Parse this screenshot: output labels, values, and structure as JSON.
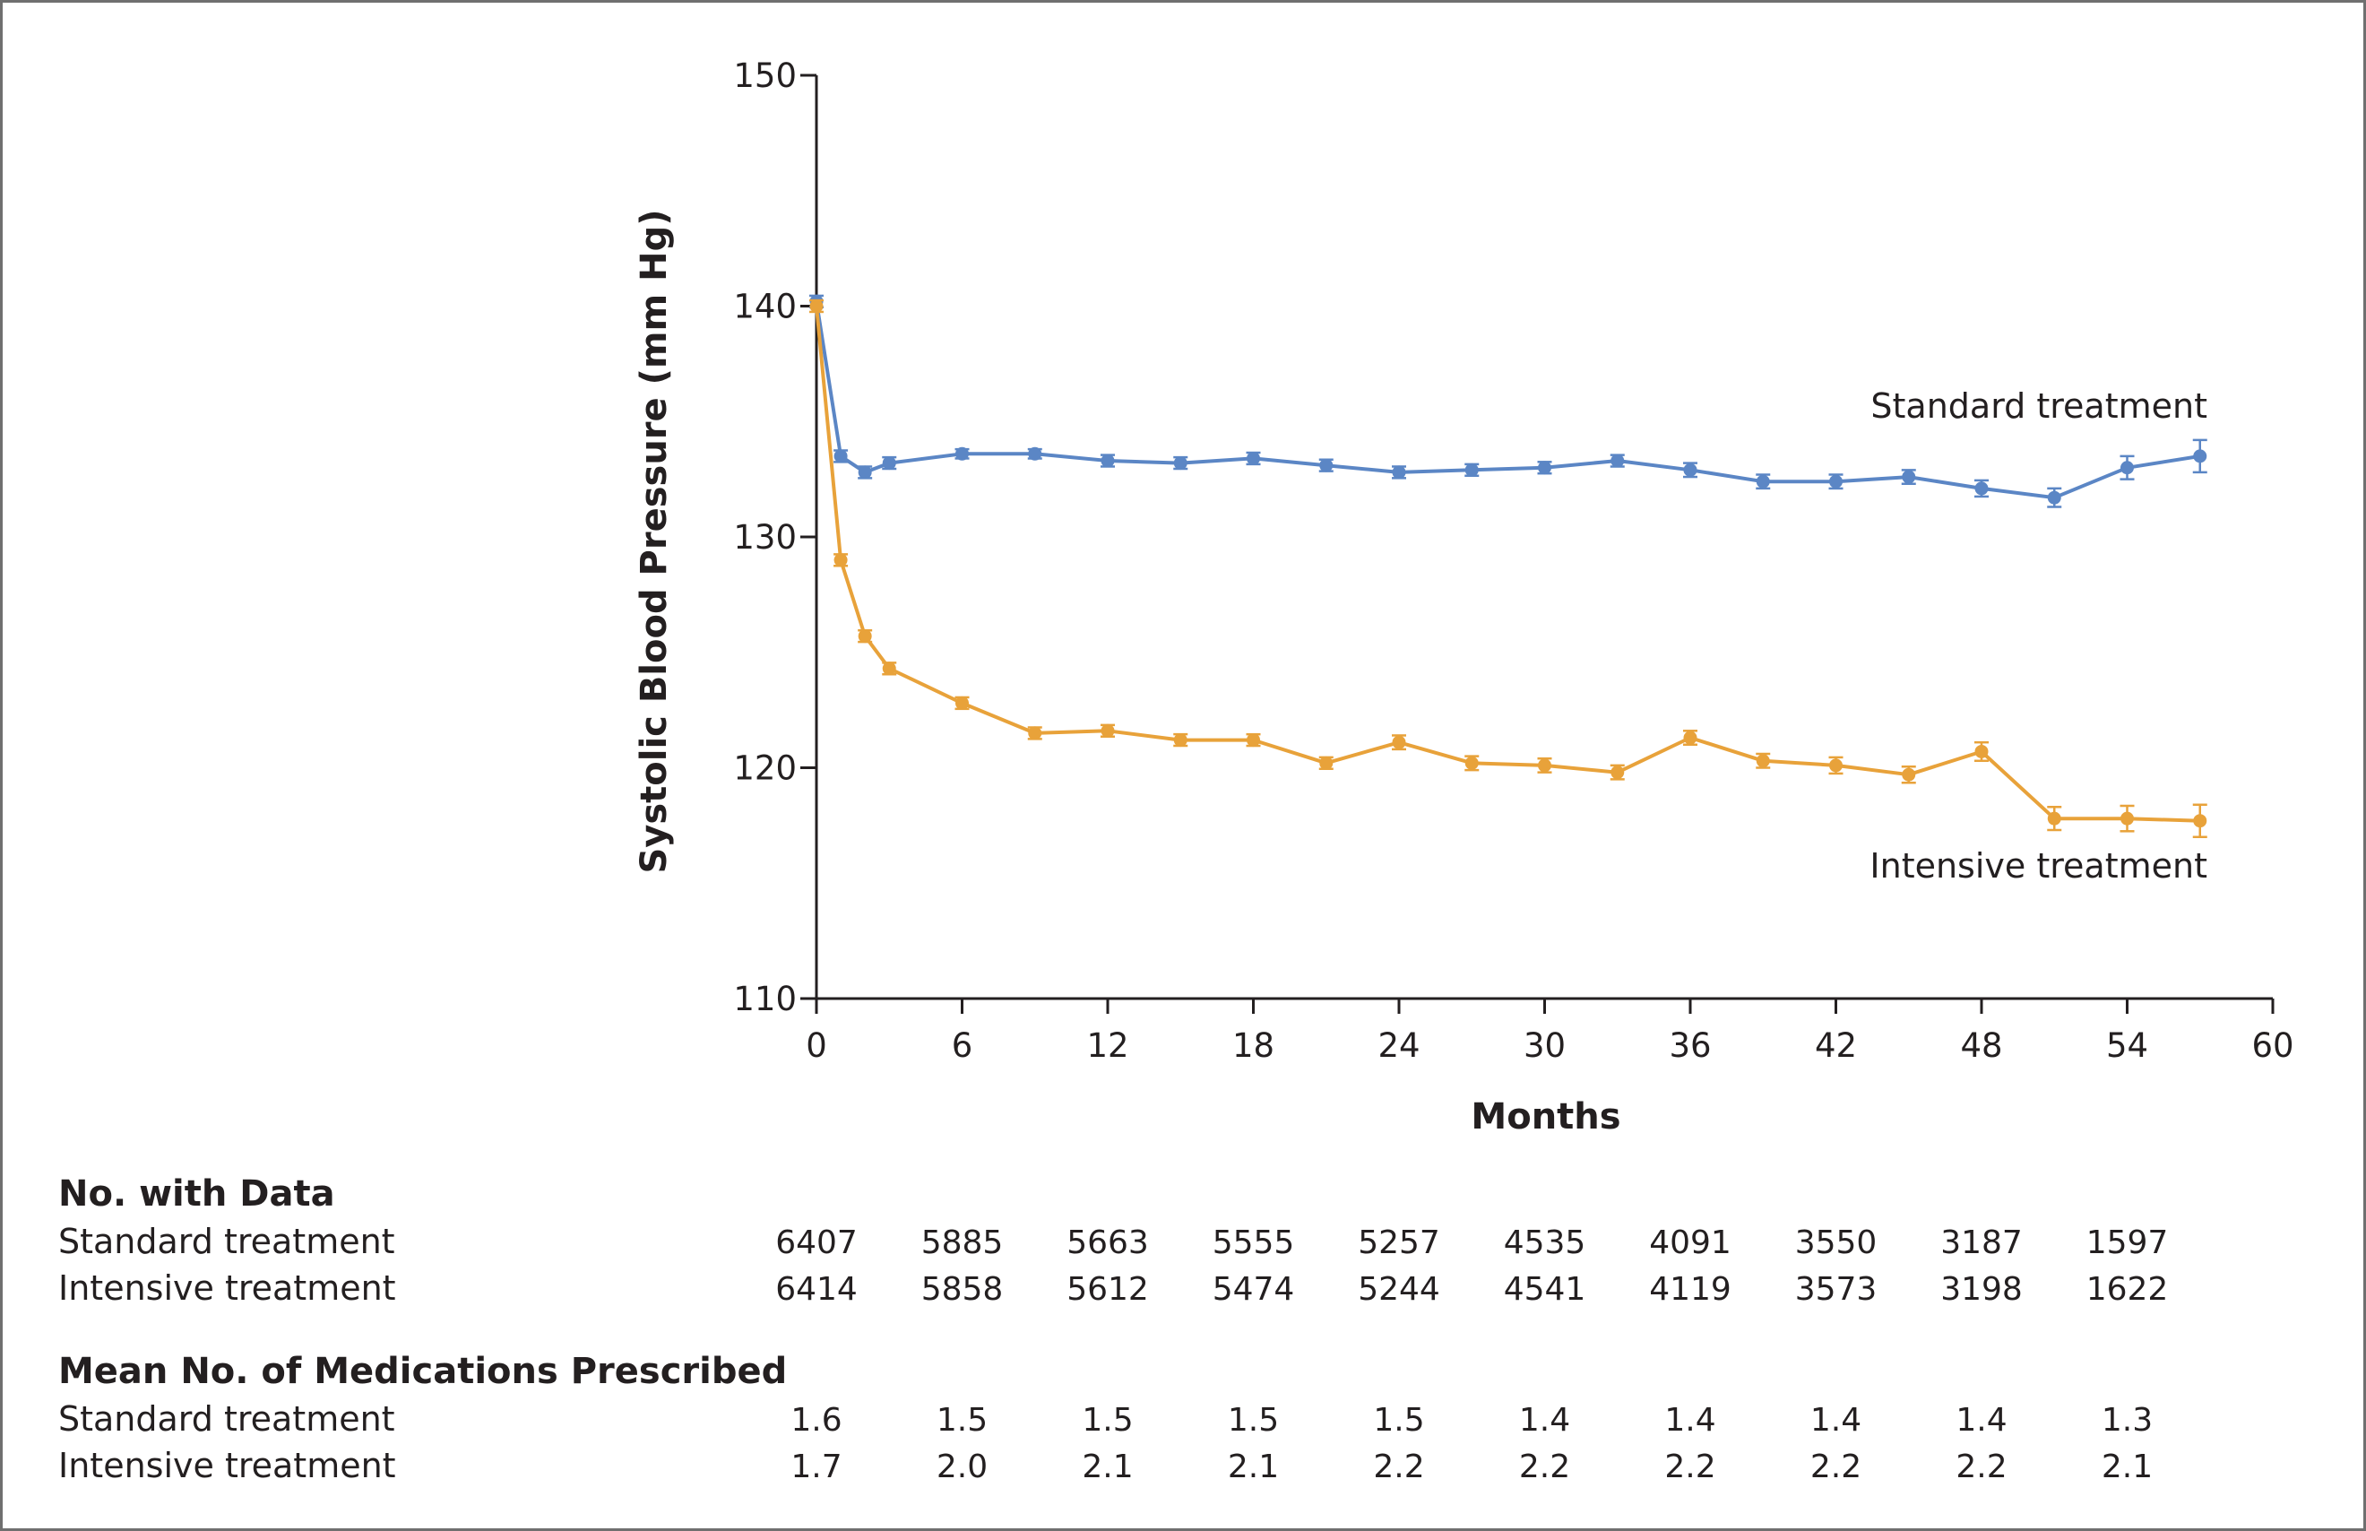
{
  "chart_data": {
    "type": "line",
    "xlabel": "Months",
    "ylabel": "Systolic Blood Pressure (mm Hg)",
    "xlim": [
      0,
      60
    ],
    "ylim": [
      110,
      150
    ],
    "x_ticks": [
      0,
      6,
      12,
      18,
      24,
      30,
      36,
      42,
      48,
      54,
      60
    ],
    "y_ticks": [
      110,
      120,
      130,
      140,
      150
    ],
    "grid": false,
    "legend": "inline labels at right end of lines",
    "series": [
      {
        "name": "Standard treatment",
        "color": "#5b86c5",
        "x": [
          0,
          1,
          2,
          3,
          6,
          9,
          12,
          15,
          18,
          21,
          24,
          27,
          30,
          33,
          36,
          39,
          42,
          45,
          48,
          51,
          54,
          57
        ],
        "y": [
          140.2,
          133.5,
          132.8,
          133.2,
          133.6,
          133.6,
          133.3,
          133.2,
          133.4,
          133.1,
          132.8,
          132.9,
          133.0,
          133.3,
          132.9,
          132.4,
          132.4,
          132.6,
          132.1,
          131.7,
          133.0,
          133.5
        ],
        "err": [
          0.25,
          0.25,
          0.25,
          0.25,
          0.2,
          0.2,
          0.25,
          0.25,
          0.25,
          0.25,
          0.25,
          0.25,
          0.25,
          0.25,
          0.3,
          0.3,
          0.3,
          0.3,
          0.35,
          0.4,
          0.5,
          0.7
        ]
      },
      {
        "name": "Intensive treatment",
        "color": "#e8a23a",
        "x": [
          0,
          1,
          2,
          3,
          6,
          9,
          12,
          15,
          18,
          21,
          24,
          27,
          30,
          33,
          36,
          39,
          42,
          45,
          48,
          51,
          54,
          57
        ],
        "y": [
          140.0,
          129.0,
          125.7,
          124.3,
          122.8,
          121.5,
          121.6,
          121.2,
          121.2,
          120.2,
          121.1,
          120.2,
          120.1,
          119.8,
          121.3,
          120.3,
          120.1,
          119.7,
          120.7,
          117.8,
          117.8,
          117.7
        ],
        "err": [
          0.25,
          0.25,
          0.25,
          0.25,
          0.25,
          0.25,
          0.25,
          0.25,
          0.25,
          0.25,
          0.3,
          0.3,
          0.3,
          0.3,
          0.3,
          0.3,
          0.35,
          0.35,
          0.4,
          0.5,
          0.55,
          0.7
        ]
      }
    ]
  },
  "tables": [
    {
      "title": "No. with Data",
      "x": [
        0,
        6,
        12,
        18,
        24,
        30,
        36,
        42,
        48,
        54
      ],
      "rows": [
        {
          "label": "Standard treatment",
          "values": [
            "6407",
            "5885",
            "5663",
            "5555",
            "5257",
            "4535",
            "4091",
            "3550",
            "3187",
            "1597"
          ]
        },
        {
          "label": "Intensive treatment",
          "values": [
            "6414",
            "5858",
            "5612",
            "5474",
            "5244",
            "4541",
            "4119",
            "3573",
            "3198",
            "1622"
          ]
        }
      ]
    },
    {
      "title": "Mean No. of Medications Prescribed",
      "x": [
        0,
        6,
        12,
        18,
        24,
        30,
        36,
        42,
        48,
        54
      ],
      "rows": [
        {
          "label": "Standard treatment",
          "values": [
            "1.6",
            "1.5",
            "1.5",
            "1.5",
            "1.5",
            "1.4",
            "1.4",
            "1.4",
            "1.4",
            "1.3"
          ]
        },
        {
          "label": "Intensive treatment",
          "values": [
            "1.7",
            "2.0",
            "2.1",
            "2.1",
            "2.2",
            "2.2",
            "2.2",
            "2.2",
            "2.2",
            "2.1"
          ]
        }
      ]
    }
  ]
}
